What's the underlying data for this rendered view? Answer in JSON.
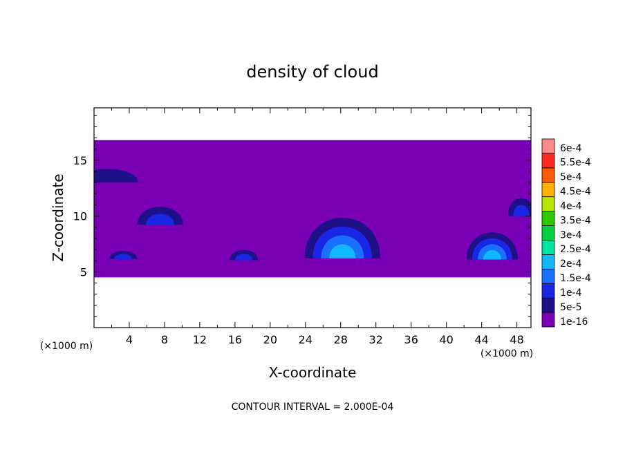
{
  "chart_data": {
    "type": "heatmap",
    "title": "density of cloud",
    "xlabel": "X-coordinate",
    "ylabel": "Z-coordinate",
    "x_unit": "(×1000 m)",
    "z_unit": "(×1000 m)",
    "xlim": [
      0,
      49.6
    ],
    "ylim": [
      0,
      19.7
    ],
    "x_ticks": [
      "4",
      "8",
      "12",
      "16",
      "20",
      "24",
      "28",
      "32",
      "36",
      "40",
      "44",
      "48"
    ],
    "y_ticks": [
      "5",
      "10",
      "15"
    ],
    "footer": "CONTOUR INTERVAL = 2.000E-04",
    "colorbar": {
      "labels": [
        "1e-16",
        "5e-5",
        "1e-4",
        "1.5e-4",
        "2e-4",
        "2.5e-4",
        "3e-4",
        "3.5e-4",
        "4e-4",
        "4.5e-4",
        "5e-4",
        "5.5e-4",
        "6e-4"
      ],
      "colors": [
        "#7a00b8",
        "#1e1088",
        "#1a26e6",
        "#1a70ff",
        "#12b8ff",
        "#00e6a0",
        "#00d040",
        "#30c800",
        "#b8e600",
        "#ffb000",
        "#ff5a00",
        "#ff2a20",
        "#ff8a8a"
      ]
    },
    "cloud_layer": {
      "z_bottom": 4.5,
      "z_top": 16.8,
      "level": "1e-16"
    },
    "cells": [
      {
        "x_center": 28.2,
        "z_center": 8.0,
        "half_width": 4.3,
        "height": 3.6,
        "peak_level": "2e-4"
      },
      {
        "x_center": 45.2,
        "z_center": 7.3,
        "half_width": 2.9,
        "height": 2.4,
        "peak_level": "2e-4"
      },
      {
        "x_center": 7.5,
        "z_center": 10.0,
        "half_width": 2.6,
        "height": 1.6,
        "peak_level": "1e-4"
      },
      {
        "x_center": 1.5,
        "z_center": 13.6,
        "half_width": 3.5,
        "height": 1.2,
        "peak_level": "5e-5"
      },
      {
        "x_center": 48.5,
        "z_center": 10.8,
        "half_width": 1.5,
        "height": 1.6,
        "peak_level": "1e-4"
      },
      {
        "x_center": 17.0,
        "z_center": 6.5,
        "half_width": 1.6,
        "height": 0.9,
        "peak_level": "1e-4"
      },
      {
        "x_center": 3.3,
        "z_center": 6.5,
        "half_width": 1.6,
        "height": 0.7,
        "peak_level": "1e-4"
      }
    ]
  }
}
